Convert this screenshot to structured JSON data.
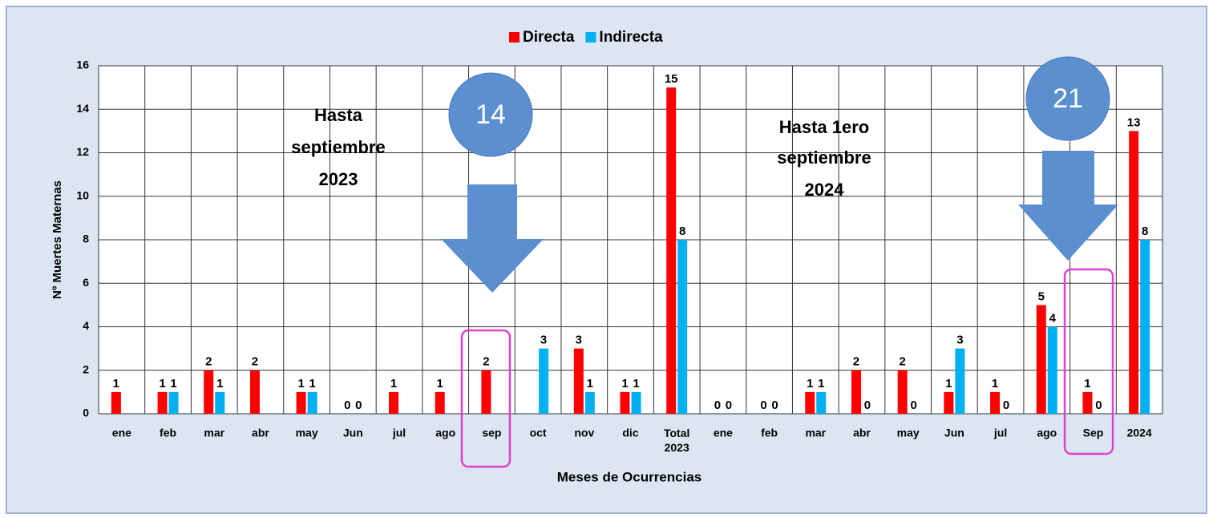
{
  "chart_data": {
    "type": "bar",
    "legend": "top",
    "grid": true,
    "y_label": "Nº Muertes Maternas",
    "x_label": "Meses de Ocurrencias",
    "categories": [
      "ene",
      "feb",
      "mar",
      "abr",
      "may",
      "Jun",
      "jul",
      "ago",
      "sep",
      "oct",
      "nov",
      "dic",
      "Total 2023",
      "ene",
      "feb",
      "mar",
      "abr",
      "may",
      "Jun",
      "jul",
      "ago",
      "Sep",
      "2024"
    ],
    "series": [
      {
        "name": "Directa",
        "color": "#ff0000",
        "values": [
          1,
          1,
          2,
          2,
          1,
          0,
          1,
          1,
          2,
          null,
          3,
          1,
          15,
          0,
          0,
          1,
          2,
          2,
          1,
          1,
          5,
          1,
          13
        ]
      },
      {
        "name": "Indirecta",
        "color": "#00b0f0",
        "values": [
          null,
          1,
          1,
          null,
          1,
          0,
          null,
          null,
          null,
          3,
          1,
          1,
          8,
          0,
          0,
          1,
          0,
          0,
          3,
          0,
          4,
          0,
          8
        ]
      }
    ],
    "ylim": [
      0,
      16
    ],
    "yticks": [
      0,
      2,
      4,
      6,
      8,
      10,
      12,
      14,
      16
    ],
    "annotations": [
      {
        "lines": [
          "Hasta",
          "septiembre",
          "2023"
        ]
      },
      {
        "circle": "14"
      },
      {
        "lines": [
          "Hasta 1ero",
          "septiembre",
          "2024"
        ]
      },
      {
        "circle": "21"
      }
    ]
  }
}
